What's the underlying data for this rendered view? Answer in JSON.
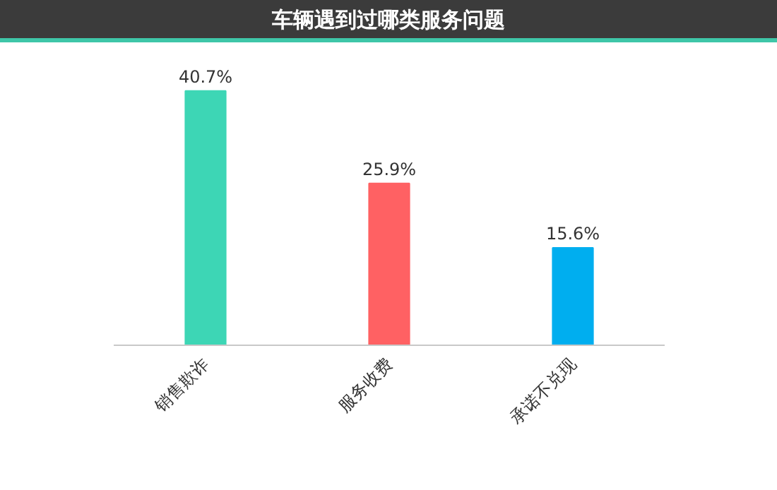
{
  "chart_data": {
    "type": "bar",
    "title": "车辆遇到过哪类服务问题",
    "categories": [
      "销售欺诈",
      "服务收费",
      "承诺不兑现"
    ],
    "values": [
      40.7,
      25.9,
      15.6
    ],
    "colors": [
      "#3dd6b5",
      "#ff6163",
      "#00aeef"
    ],
    "value_labels": [
      "40.7%",
      "25.9%",
      "15.6%"
    ],
    "grid": false
  }
}
